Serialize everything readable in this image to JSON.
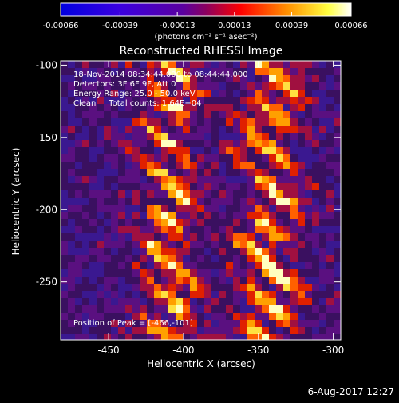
{
  "chart_data": {
    "type": "heatmap",
    "title": "Reconstructed RHESSI Image",
    "xlabel": "Heliocentric X (arcsec)",
    "ylabel": "Heliocentric Y (arcsec)",
    "xlim": [
      -482,
      -295
    ],
    "ylim": [
      -290,
      -97
    ],
    "x_ticks": [
      "-450",
      "-400",
      "-350",
      "-300"
    ],
    "x_tick_values": [
      -450,
      -400,
      -350,
      -300
    ],
    "y_ticks": [
      "-100",
      "-150",
      "-200",
      "-250"
    ],
    "y_tick_values": [
      -100,
      -150,
      -200,
      -250
    ],
    "colorbar": {
      "ticks": [
        "-0.00066",
        "-0.00039",
        "-0.00013",
        "0.00013",
        "0.00039",
        "0.00066"
      ],
      "tick_values": [
        -0.00066,
        -0.00039,
        -0.00013,
        0.00013,
        0.00039,
        0.00066
      ],
      "range": [
        -0.00066,
        0.00066
      ],
      "unit_label": "(photons cm⁻² s⁻¹ asec⁻²)"
    },
    "annotations": [
      "18-Nov-2014 08:34:44.000 to 08:44:44.000",
      "Detectors: 3F 6F 9F, Att 0",
      "Energy Range: 25.0 - 50.0 keV",
      "Clean     Total counts: 1.64E+04"
    ],
    "peak_label": "Position of Peak = [-466,-101]",
    "bright_bands": [
      {
        "name": "left band",
        "x_center": -410,
        "width": 28
      },
      {
        "name": "right band",
        "x_center": -343,
        "width": 30
      }
    ],
    "colors": {
      "negative": "#0000ff",
      "zero": "#2a0a3a",
      "positive_mid": "#ff2000",
      "positive_high": "#ffffd0"
    }
  },
  "footer": {
    "date": "6-Aug-2017 12:27"
  }
}
